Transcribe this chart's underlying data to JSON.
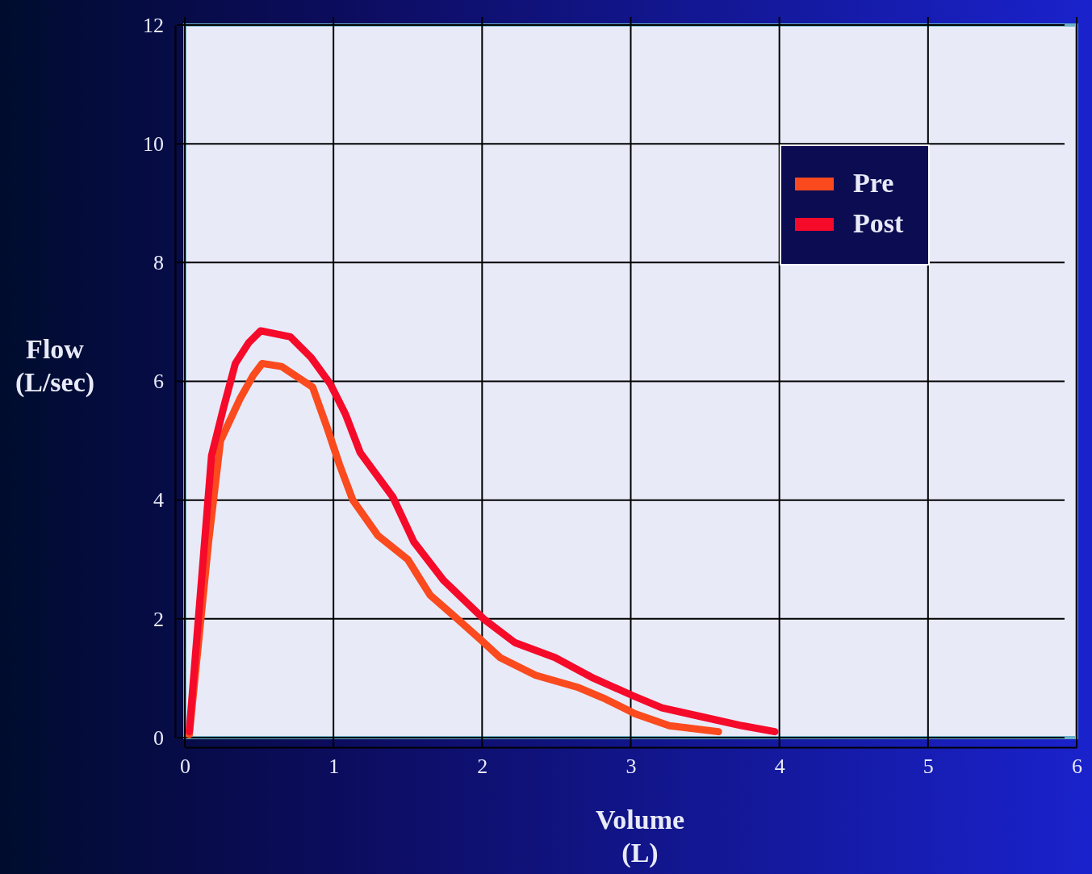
{
  "chart_data": {
    "type": "line",
    "xlabel": "Volume\n(L)",
    "ylabel": "Flow\n(L/sec)",
    "xlim": [
      0,
      6
    ],
    "ylim": [
      0,
      12
    ],
    "xticks": [
      0,
      1,
      2,
      3,
      4,
      5,
      6
    ],
    "yticks": [
      0,
      2,
      4,
      6,
      8,
      10,
      12
    ],
    "grid": true,
    "legend": "top right",
    "line_style": "solid",
    "marker": "none",
    "series": [
      {
        "name": "Pre",
        "color": "#fa4a1e",
        "x": [
          0.03,
          0.16,
          0.24,
          0.37,
          0.46,
          0.52,
          0.65,
          0.77,
          0.86,
          0.96,
          1.04,
          1.13,
          1.3,
          1.5,
          1.65,
          1.81,
          1.99,
          2.12,
          2.36,
          2.64,
          2.83,
          3.03,
          3.26,
          3.59
        ],
        "values": [
          0.05,
          3.3,
          5.0,
          5.7,
          6.1,
          6.3,
          6.25,
          6.05,
          5.9,
          5.2,
          4.6,
          4.0,
          3.4,
          3.0,
          2.4,
          2.05,
          1.65,
          1.35,
          1.05,
          0.85,
          0.65,
          0.4,
          0.2,
          0.1
        ]
      },
      {
        "name": "Post",
        "color": "#f50a2a",
        "x": [
          0.03,
          0.18,
          0.26,
          0.34,
          0.43,
          0.51,
          0.71,
          0.85,
          0.98,
          1.08,
          1.18,
          1.4,
          1.54,
          1.74,
          2.01,
          2.22,
          2.49,
          2.75,
          3.02,
          3.21,
          3.48,
          3.75,
          3.97
        ],
        "values": [
          0.1,
          4.75,
          5.55,
          6.3,
          6.65,
          6.85,
          6.75,
          6.4,
          5.95,
          5.45,
          4.8,
          4.05,
          3.3,
          2.65,
          2.0,
          1.6,
          1.35,
          1.0,
          0.7,
          0.5,
          0.35,
          0.2,
          0.1
        ]
      }
    ]
  }
}
